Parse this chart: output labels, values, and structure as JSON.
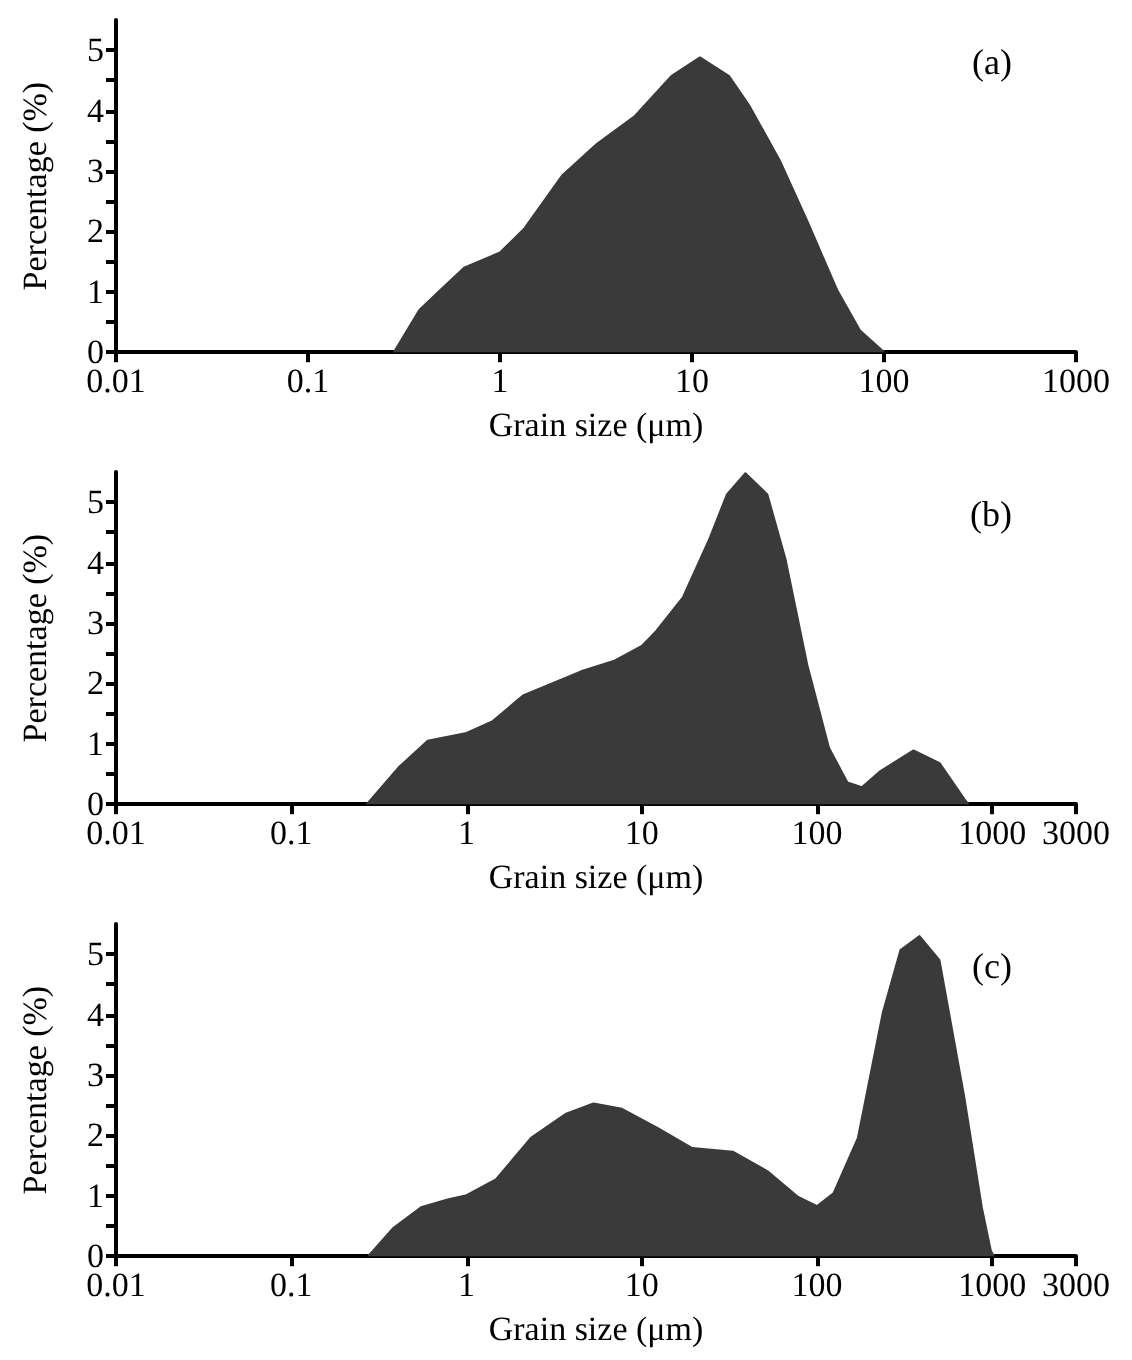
{
  "chart_data": [
    {
      "type": "area",
      "xlabel": "Grain size (μm)",
      "ylabel": "Percentage (%)",
      "annotations": [
        "(a)"
      ],
      "log": "x",
      "grid": false,
      "marker": "none",
      "xlim": [
        0.01,
        1000
      ],
      "xticks": [
        0.01,
        0.1,
        1,
        10,
        100,
        1000
      ],
      "ylim": [
        0,
        5.5
      ],
      "yticks": [
        0,
        {
          "value": 0.5,
          "label": null
        },
        1,
        {
          "value": 1.5,
          "label": null
        },
        2,
        {
          "value": 2.5,
          "label": null
        },
        3,
        {
          "value": 3.5,
          "label": null
        },
        4,
        {
          "value": 4.5,
          "label": null
        },
        5
      ],
      "x": [
        0.28,
        0.38,
        0.5,
        0.65,
        1,
        1.34,
        2.1,
        3.2,
        5.0,
        7.8,
        11,
        15.6,
        20,
        28.7,
        40,
        57,
        75,
        97,
        100
      ],
      "series": [
        {
          "color": "#3a3a3a",
          "values": [
            0,
            0.7,
            1.06,
            1.4,
            1.65,
            2.05,
            2.92,
            3.45,
            3.9,
            4.57,
            4.88,
            4.57,
            4.07,
            3.17,
            2.16,
            1.03,
            0.36,
            0.04,
            0
          ]
        }
      ]
    },
    {
      "type": "area",
      "xlabel": "Grain size (μm)",
      "ylabel": "Percentage (%)",
      "annotations": [
        "(b)"
      ],
      "log": "x",
      "grid": false,
      "marker": "none",
      "xlim": [
        0.01,
        3000
      ],
      "xticks": [
        0.01,
        0.1,
        1,
        10,
        100,
        1000,
        3000
      ],
      "ylim": [
        0,
        5.5
      ],
      "yticks": [
        0,
        {
          "value": 0.5,
          "label": null
        },
        1,
        {
          "value": 1.5,
          "label": null
        },
        2,
        {
          "value": 2.5,
          "label": null
        },
        3,
        {
          "value": 3.5,
          "label": null
        },
        4,
        {
          "value": 4.5,
          "label": null
        },
        5
      ],
      "x": [
        0.27,
        0.41,
        0.6,
        1,
        1.4,
        2.1,
        4.5,
        6.9,
        10,
        12.1,
        17.2,
        24.1,
        30.6,
        39,
        52,
        66,
        88,
        117,
        149,
        180,
        230,
        355,
        500,
        694,
        730
      ],
      "series": [
        {
          "color": "#3a3a3a",
          "values": [
            0,
            0.61,
            1.05,
            1.18,
            1.37,
            1.8,
            2.2,
            2.37,
            2.62,
            2.87,
            3.43,
            4.37,
            5.13,
            5.48,
            5.13,
            4.06,
            2.3,
            0.93,
            0.36,
            0.28,
            0.55,
            0.89,
            0.68,
            0.08,
            0
          ]
        }
      ]
    },
    {
      "type": "area",
      "xlabel": "Grain size (μm)",
      "ylabel": "Percentage (%)",
      "annotations": [
        "(c)"
      ],
      "log": "x",
      "grid": false,
      "marker": "none",
      "xlim": [
        0.01,
        3000
      ],
      "xticks": [
        0.01,
        0.1,
        1,
        10,
        100,
        1000,
        3000
      ],
      "ylim": [
        0,
        5.5
      ],
      "yticks": [
        0,
        {
          "value": 0.5,
          "label": null
        },
        1,
        {
          "value": 1.5,
          "label": null
        },
        2,
        {
          "value": 2.5,
          "label": null
        },
        3,
        {
          "value": 3.5,
          "label": null
        },
        4,
        {
          "value": 4.5,
          "label": null
        },
        5
      ],
      "x": [
        0.275,
        0.38,
        0.55,
        0.78,
        1,
        1.47,
        2.33,
        3.7,
        5.3,
        7.7,
        12.2,
        19.4,
        33,
        52,
        78,
        100,
        124,
        171,
        237,
        299,
        384,
        499,
        690,
        870,
        980,
        1020
      ],
      "series": [
        {
          "color": "#3a3a3a",
          "values": [
            0,
            0.46,
            0.81,
            0.94,
            1.01,
            1.27,
            1.96,
            2.36,
            2.53,
            2.44,
            2.13,
            1.79,
            1.73,
            1.41,
            0.98,
            0.83,
            1.04,
            1.96,
            4.03,
            5.07,
            5.3,
            4.9,
            2.65,
            0.81,
            0.09,
            0
          ]
        }
      ]
    }
  ]
}
